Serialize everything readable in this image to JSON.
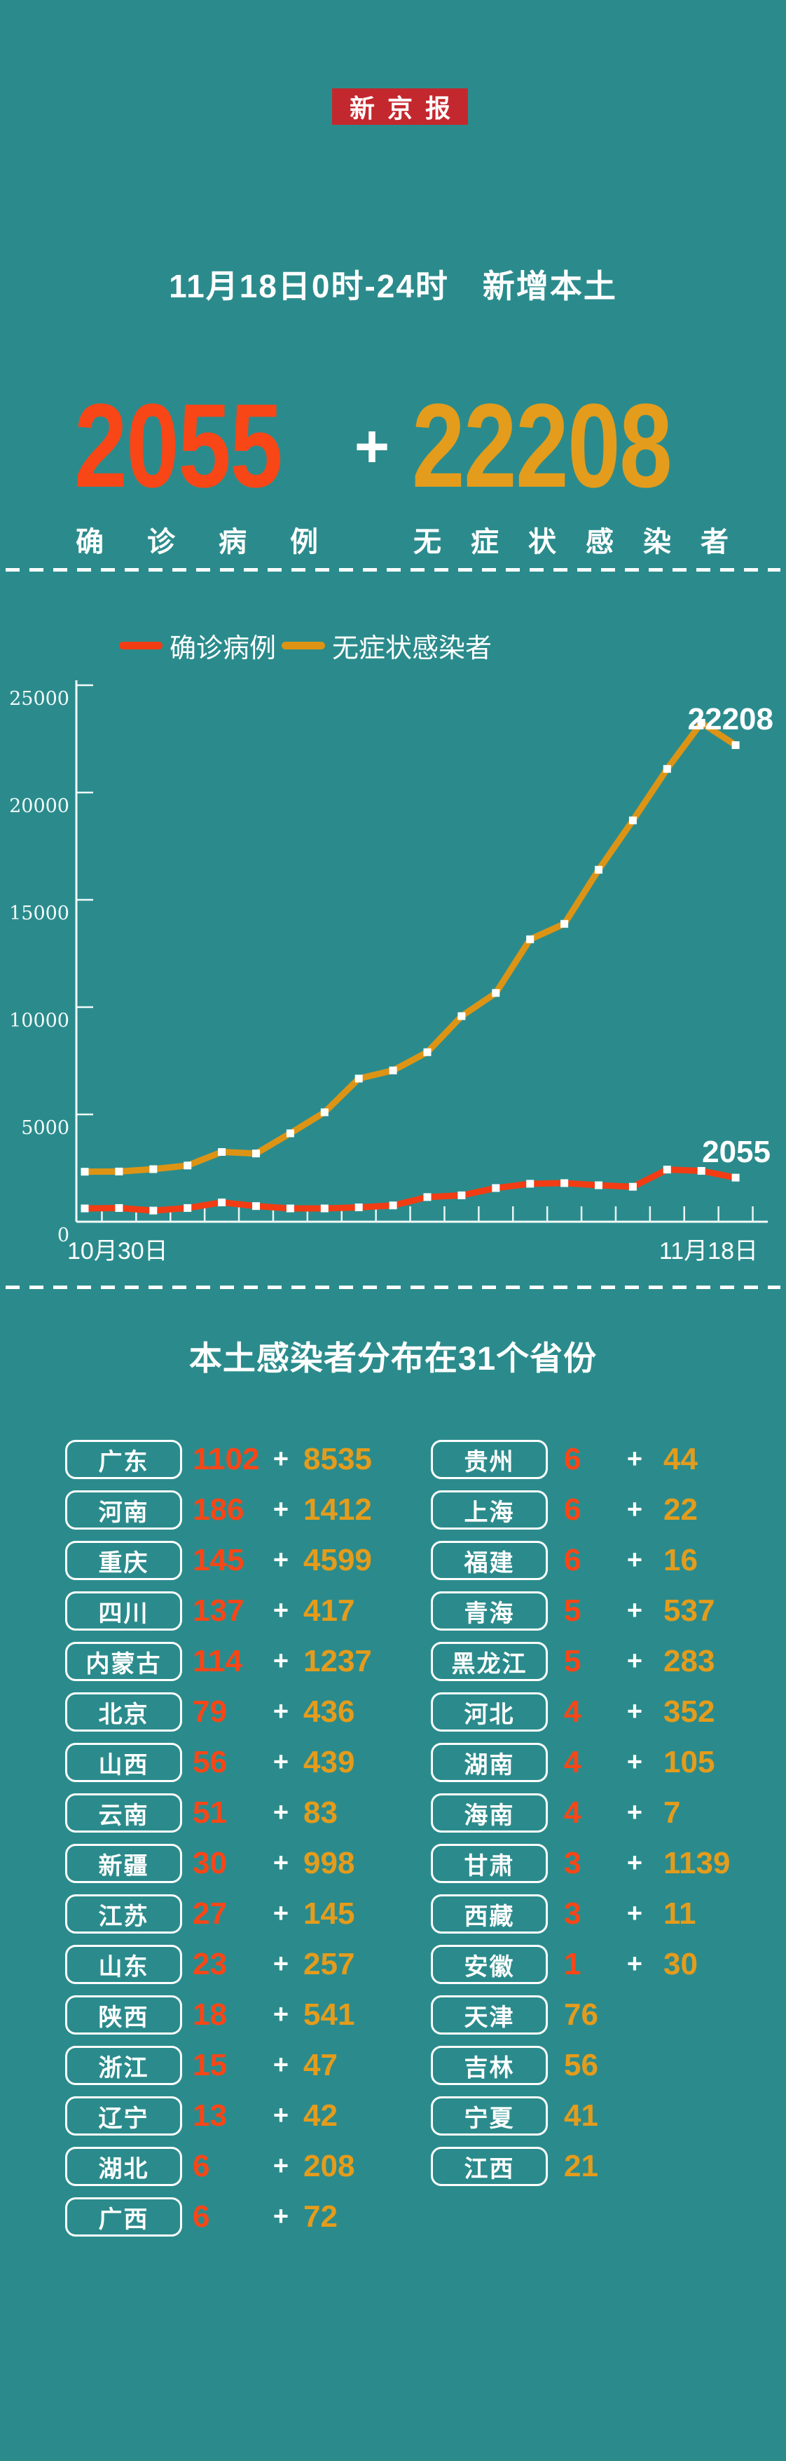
{
  "colors": {
    "background": "#2b8b8c",
    "brand_red": "#c3282e",
    "accent_red": "#f84617",
    "accent_orange": "#e49c1c",
    "line_red": "#f23d14",
    "line_orange": "#dd9415"
  },
  "masthead": {
    "logo_text": "新京报"
  },
  "header": {
    "title": "11月18日0时-24时　新增本土",
    "plus": "+",
    "confirmed": {
      "value": "2055",
      "label": "确诊病例"
    },
    "asymptomatic": {
      "value": "22208",
      "label": "无症状感染者"
    }
  },
  "legend": {
    "confirmed": "确诊病例",
    "asymptomatic": "无症状感染者"
  },
  "chart_data": {
    "type": "line",
    "title": "",
    "xlabel": "",
    "ylabel": "",
    "ylim": [
      0,
      25000
    ],
    "yticks": [
      0,
      5000,
      10000,
      15000,
      20000,
      25000
    ],
    "grid": false,
    "legend_position": "top-left",
    "marker": "square",
    "x": [
      "10月30日",
      "10月31日",
      "11月1日",
      "11月2日",
      "11月3日",
      "11月4日",
      "11月5日",
      "11月6日",
      "11月7日",
      "11月8日",
      "11月9日",
      "11月10日",
      "11月11日",
      "11月12日",
      "11月13日",
      "11月14日",
      "11月15日",
      "11月16日",
      "11月17日",
      "11月18日"
    ],
    "x_axis_labels": {
      "first": "10月30日",
      "last": "11月18日"
    },
    "series": [
      {
        "name": "无症状感染者",
        "color": "#dd9415",
        "end_label": "22208",
        "values": [
          2330,
          2340,
          2450,
          2620,
          3250,
          3180,
          4120,
          5100,
          6670,
          7050,
          7900,
          9580,
          10660,
          13160,
          13880,
          16400,
          18700,
          21100,
          23250,
          22208
        ]
      },
      {
        "name": "确诊病例",
        "color": "#f23d14",
        "end_label": "2055",
        "values": [
          620,
          640,
          520,
          640,
          900,
          730,
          620,
          620,
          670,
          760,
          1150,
          1230,
          1570,
          1770,
          1800,
          1700,
          1630,
          2430,
          2370,
          2055
        ]
      }
    ]
  },
  "distribution": {
    "title": "本土感染者分布在31个省份",
    "plus": "+",
    "columns": {
      "left": [
        {
          "province": "广东",
          "confirmed": "1102",
          "asymptomatic": "8535"
        },
        {
          "province": "河南",
          "confirmed": "186",
          "asymptomatic": "1412"
        },
        {
          "province": "重庆",
          "confirmed": "145",
          "asymptomatic": "4599"
        },
        {
          "province": "四川",
          "confirmed": "137",
          "asymptomatic": "417"
        },
        {
          "province": "内蒙古",
          "confirmed": "114",
          "asymptomatic": "1237"
        },
        {
          "province": "北京",
          "confirmed": "79",
          "asymptomatic": "436"
        },
        {
          "province": "山西",
          "confirmed": "56",
          "asymptomatic": "439"
        },
        {
          "province": "云南",
          "confirmed": "51",
          "asymptomatic": "83"
        },
        {
          "province": "新疆",
          "confirmed": "30",
          "asymptomatic": "998"
        },
        {
          "province": "江苏",
          "confirmed": "27",
          "asymptomatic": "145"
        },
        {
          "province": "山东",
          "confirmed": "23",
          "asymptomatic": "257"
        },
        {
          "province": "陕西",
          "confirmed": "18",
          "asymptomatic": "541"
        },
        {
          "province": "浙江",
          "confirmed": "15",
          "asymptomatic": "47"
        },
        {
          "province": "辽宁",
          "confirmed": "13",
          "asymptomatic": "42"
        },
        {
          "province": "湖北",
          "confirmed": "6",
          "asymptomatic": "208"
        },
        {
          "province": "广西",
          "confirmed": "6",
          "asymptomatic": "72"
        }
      ],
      "right": [
        {
          "province": "贵州",
          "confirmed": "6",
          "asymptomatic": "44"
        },
        {
          "province": "上海",
          "confirmed": "6",
          "asymptomatic": "22"
        },
        {
          "province": "福建",
          "confirmed": "6",
          "asymptomatic": "16"
        },
        {
          "province": "青海",
          "confirmed": "5",
          "asymptomatic": "537"
        },
        {
          "province": "黑龙江",
          "confirmed": "5",
          "asymptomatic": "283"
        },
        {
          "province": "河北",
          "confirmed": "4",
          "asymptomatic": "352"
        },
        {
          "province": "湖南",
          "confirmed": "4",
          "asymptomatic": "105"
        },
        {
          "province": "海南",
          "confirmed": "4",
          "asymptomatic": "7"
        },
        {
          "province": "甘肃",
          "confirmed": "3",
          "asymptomatic": "1139"
        },
        {
          "province": "西藏",
          "confirmed": "3",
          "asymptomatic": "11"
        },
        {
          "province": "安徽",
          "confirmed": "1",
          "asymptomatic": "30"
        },
        {
          "province": "天津",
          "confirmed": null,
          "asymptomatic": "76"
        },
        {
          "province": "吉林",
          "confirmed": null,
          "asymptomatic": "56"
        },
        {
          "province": "宁夏",
          "confirmed": null,
          "asymptomatic": "41"
        },
        {
          "province": "江西",
          "confirmed": null,
          "asymptomatic": "21"
        }
      ]
    }
  }
}
